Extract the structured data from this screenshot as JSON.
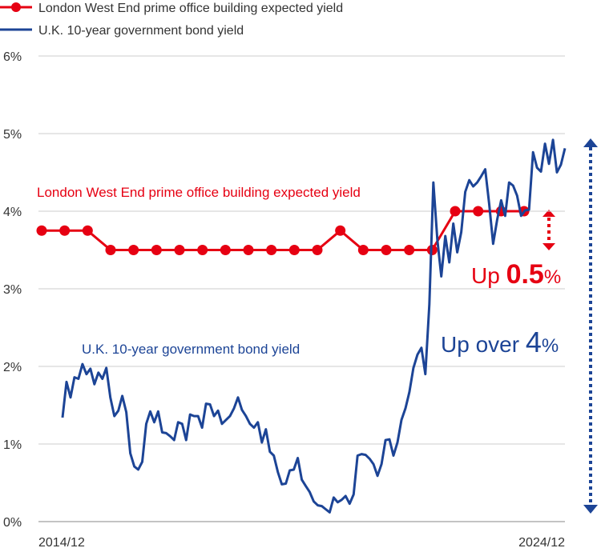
{
  "chart_data": {
    "type": "line",
    "legend": "top-left",
    "x_labels": [
      "2014/12",
      "2024/12"
    ],
    "ylim": [
      0,
      6
    ],
    "yticks": [
      {
        "value": 0,
        "label": "0%"
      },
      {
        "value": 1,
        "label": "1%"
      },
      {
        "value": 2,
        "label": "2%"
      },
      {
        "value": 3,
        "label": "3%"
      },
      {
        "value": 4,
        "label": "4%"
      },
      {
        "value": 5,
        "label": "5%"
      },
      {
        "value": 6,
        "label": "6%"
      }
    ],
    "grid": true,
    "series": [
      {
        "name": "London West End prime office building expected yield",
        "color": "#e60012",
        "markers": true,
        "values": [
          3.75,
          3.75,
          3.75,
          3.5,
          3.5,
          3.5,
          3.5,
          3.5,
          3.5,
          3.5,
          3.5,
          3.5,
          3.5,
          3.75,
          3.5,
          3.5,
          3.5,
          3.5,
          4.0,
          4.0,
          4.0,
          4.0
        ]
      },
      {
        "name": "U.K. 10-year government bond yield",
        "color": "#1c4496",
        "markers": false,
        "values": [
          1.34,
          1.8,
          1.6,
          1.86,
          1.84,
          2.03,
          1.9,
          1.97,
          1.77,
          1.92,
          1.84,
          1.98,
          1.6,
          1.36,
          1.43,
          1.62,
          1.41,
          0.88,
          0.71,
          0.67,
          0.77,
          1.26,
          1.42,
          1.28,
          1.42,
          1.15,
          1.14,
          1.1,
          1.05,
          1.28,
          1.26,
          1.05,
          1.38,
          1.36,
          1.36,
          1.21,
          1.52,
          1.51,
          1.36,
          1.43,
          1.26,
          1.31,
          1.36,
          1.46,
          1.6,
          1.44,
          1.36,
          1.26,
          1.21,
          1.28,
          1.02,
          1.19,
          0.9,
          0.85,
          0.64,
          0.48,
          0.49,
          0.66,
          0.67,
          0.82,
          0.54,
          0.46,
          0.38,
          0.26,
          0.21,
          0.2,
          0.16,
          0.12,
          0.31,
          0.25,
          0.28,
          0.33,
          0.23,
          0.35,
          0.85,
          0.87,
          0.86,
          0.81,
          0.74,
          0.59,
          0.74,
          1.05,
          1.06,
          0.85,
          1.02,
          1.31,
          1.46,
          1.67,
          1.98,
          2.15,
          2.24,
          1.9,
          2.8,
          4.37,
          3.63,
          3.16,
          3.68,
          3.34,
          3.84,
          3.47,
          3.73,
          4.25,
          4.4,
          4.32,
          4.37,
          4.45,
          4.54,
          4.09,
          3.58,
          3.89,
          4.14,
          3.94,
          4.37,
          4.33,
          4.2,
          3.94,
          4.01,
          4.02,
          4.76,
          4.56,
          4.51,
          4.87,
          4.61,
          4.92,
          4.5,
          4.6,
          4.81
        ]
      }
    ],
    "annotations": [
      {
        "text": "London West End prime office building expected yield"
      },
      {
        "text": "U.K. 10-year government bond yield"
      },
      {
        "parts": [
          "Up ",
          "0.5",
          "%"
        ]
      },
      {
        "parts": [
          "Up over ",
          "4",
          "%"
        ]
      }
    ]
  }
}
